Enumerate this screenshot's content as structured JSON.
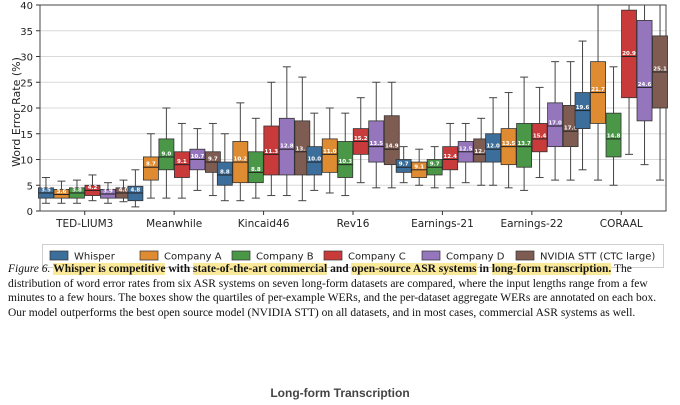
{
  "chart_data": {
    "type": "box",
    "ylabel": "Word Error Rate (%)",
    "ylim": [
      0,
      40
    ],
    "yticks": [
      "0",
      "5",
      "10",
      "15",
      "20",
      "25",
      "30",
      "35",
      "40"
    ],
    "grid": "horizontal",
    "legend_position": "bottom",
    "categories": [
      "TED-LIUM3",
      "Meanwhile",
      "Kincaid46",
      "Rev16",
      "Earnings-21",
      "Earnings-22",
      "CORAAL"
    ],
    "series": [
      {
        "name": "Whisper",
        "color": "#3c6e9b",
        "boxes": [
          [
            2.5,
            3.5,
            4.5,
            1.5,
            6.5
          ],
          [
            2.0,
            3.5,
            4.8,
            0.8,
            8.0
          ],
          [
            5.0,
            7.0,
            9.5,
            2.0,
            15.0
          ],
          [
            7.0,
            9.5,
            12.5,
            4.0,
            19.0
          ],
          [
            7.5,
            8.5,
            10.0,
            5.5,
            12.5
          ],
          [
            9.5,
            12.0,
            15.0,
            5.0,
            22.0
          ],
          [
            16.0,
            19.5,
            23.0,
            8.0,
            33.0
          ]
        ],
        "labels": [
          "3.5",
          "4.8",
          "8.8",
          "10.0",
          "9.7",
          "12.0",
          "19.6"
        ]
      },
      {
        "name": "Company A",
        "color": "#df8b32",
        "boxes": [
          [
            2.5,
            3.2,
            4.2,
            1.5,
            5.8
          ],
          [
            6.0,
            8.5,
            10.5,
            2.5,
            15.0
          ],
          [
            5.5,
            9.5,
            13.5,
            2.0,
            21.0
          ],
          [
            7.5,
            11.0,
            14.0,
            3.5,
            20.0
          ],
          [
            6.5,
            8.0,
            9.5,
            5.0,
            12.0
          ],
          [
            9.0,
            12.5,
            16.0,
            4.5,
            23.0
          ],
          [
            17.0,
            23.0,
            29.0,
            6.0,
            40.0
          ]
        ],
        "labels": [
          "3.6",
          "8.7",
          "10.2",
          "11.0",
          "9.1",
          "13.5",
          "21.7"
        ]
      },
      {
        "name": "Company B",
        "color": "#4a9748",
        "boxes": [
          [
            2.5,
            3.5,
            4.5,
            1.5,
            6.0
          ],
          [
            8.0,
            10.5,
            14.0,
            2.5,
            20.0
          ],
          [
            5.5,
            7.5,
            11.5,
            2.5,
            18.0
          ],
          [
            6.5,
            9.0,
            13.5,
            3.0,
            19.0
          ],
          [
            7.0,
            8.5,
            10.0,
            4.5,
            12.5
          ],
          [
            8.5,
            12.5,
            17.0,
            4.0,
            26.0
          ],
          [
            10.5,
            14.0,
            19.0,
            5.0,
            28.0
          ]
        ],
        "labels": [
          "3.8",
          "9.0",
          "8.8",
          "10.3",
          "9.7",
          "13.7",
          "14.8"
        ]
      },
      {
        "name": "Company C",
        "color": "#c93b3b",
        "boxes": [
          [
            3.0,
            4.0,
            5.0,
            2.0,
            7.0
          ],
          [
            6.5,
            9.0,
            11.5,
            2.5,
            17.0
          ],
          [
            7.0,
            11.0,
            16.5,
            3.0,
            25.0
          ],
          [
            11.0,
            13.5,
            16.0,
            5.5,
            22.0
          ],
          [
            8.0,
            10.0,
            12.5,
            4.5,
            17.0
          ],
          [
            11.5,
            14.0,
            17.0,
            6.5,
            24.0
          ],
          [
            22.0,
            30.0,
            39.0,
            11.0,
            40.0
          ]
        ],
        "labels": [
          "4.2",
          "9.1",
          "11.3",
          "15.2",
          "12.4",
          "15.4",
          "20.9"
        ]
      },
      {
        "name": "Company D",
        "color": "#9576bc",
        "boxes": [
          [
            2.5,
            3.3,
            4.2,
            1.5,
            5.5
          ],
          [
            8.0,
            10.0,
            12.0,
            4.0,
            16.0
          ],
          [
            7.0,
            12.0,
            18.0,
            3.0,
            28.0
          ],
          [
            9.5,
            12.5,
            17.5,
            4.5,
            25.0
          ],
          [
            9.5,
            11.5,
            13.5,
            5.5,
            17.0
          ],
          [
            12.5,
            16.5,
            21.0,
            6.0,
            29.0
          ],
          [
            17.5,
            24.0,
            37.0,
            9.0,
            40.0
          ]
        ],
        "labels": [
          "3.9",
          "10.7",
          "12.8",
          "13.5",
          "12.5",
          "17.0",
          "24.6"
        ]
      },
      {
        "name": "NVIDIA STT (CTC large)",
        "color": "#7e5c52",
        "boxes": [
          [
            2.5,
            3.5,
            4.5,
            1.8,
            6.0
          ],
          [
            7.5,
            9.5,
            11.5,
            3.0,
            17.0
          ],
          [
            7.0,
            11.5,
            17.5,
            2.0,
            26.0
          ],
          [
            9.0,
            12.0,
            18.5,
            4.5,
            25.0
          ],
          [
            9.5,
            11.0,
            14.0,
            5.0,
            18.0
          ],
          [
            12.5,
            15.5,
            20.5,
            6.0,
            29.0
          ],
          [
            20.0,
            27.0,
            34.0,
            6.0,
            40.0
          ]
        ],
        "labels": [
          "4.0",
          "9.7",
          "13.1",
          "14.9",
          "12.6",
          "17.6",
          "25.1"
        ]
      }
    ]
  },
  "caption": {
    "figure_label": "Figure 6.",
    "part1": "Whisper is competitive",
    "part2": " with ",
    "part3": "state-of-the-art commercial",
    "part4": " and ",
    "part5": "open-source ASR systems",
    "part6": " in ",
    "part7": "long-form transcription.",
    "part8": " The distribution of word error rates from six ASR systems on seven long-form datasets are compared, where the input lengths range from a few minutes to a few hours. The boxes show the quartiles of per-example WERs, and the per-dataset aggregate WERs are annotated on each box. Our model outperforms the best open source model (NVIDIA STT) on all datasets, and in most cases, commercial ASR systems as well."
  },
  "section_title": "Long-form Transcription"
}
